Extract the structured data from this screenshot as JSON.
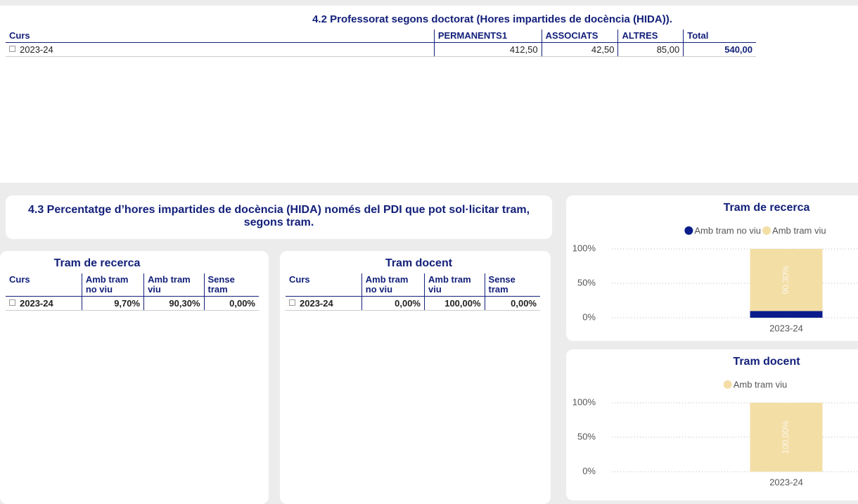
{
  "table_42": {
    "title": "4.2 Professorat segons doctorat (Hores impartides de docència (HIDA)).",
    "columns": [
      "Curs",
      "PERMANENTS1",
      "ASSOCIATS",
      "ALTRES",
      "Total"
    ],
    "rows": [
      [
        "2023-24",
        "412,50",
        "42,50",
        "85,00",
        "540,00"
      ]
    ]
  },
  "section_43": {
    "title": "4.3 Percentatge d’hores impartides de docència (HIDA) només del PDI que pot sol·licitar tram, segons tram."
  },
  "table_recerca": {
    "title": "Tram de recerca",
    "columns": [
      "Curs",
      "Amb tram no viu",
      "Amb tram viu",
      "Sense tram"
    ],
    "rows": [
      [
        "2023-24",
        "9,70%",
        "90,30%",
        "0,00%"
      ]
    ]
  },
  "table_docent": {
    "title": "Tram docent",
    "columns": [
      "Curs",
      "Amb tram no viu",
      "Amb tram viu",
      "Sense tram"
    ],
    "rows": [
      [
        "2023-24",
        "0,00%",
        "100,00%",
        "0,00%"
      ]
    ]
  },
  "chart_data": [
    {
      "type": "bar",
      "stacked": true,
      "title": "Tram de recerca",
      "categories": [
        "2023-24"
      ],
      "series": [
        {
          "name": "Amb tram no viu",
          "color": "#0b1d8a",
          "values": [
            9.7
          ]
        },
        {
          "name": "Amb tram viu",
          "color": "#f3dea6",
          "values": [
            90.3
          ],
          "value_labels": [
            "90,30%"
          ]
        }
      ],
      "ylim": [
        0,
        100
      ],
      "yticks": [
        {
          "value": 0,
          "label": "0%"
        },
        {
          "value": 50,
          "label": "50%"
        },
        {
          "value": 100,
          "label": "100%"
        }
      ],
      "grid": true
    },
    {
      "type": "bar",
      "stacked": true,
      "title": "Tram docent",
      "categories": [
        "2023-24"
      ],
      "series": [
        {
          "name": "Amb tram viu",
          "color": "#f3dea6",
          "values": [
            100
          ],
          "value_labels": [
            "100,00%"
          ]
        }
      ],
      "ylim": [
        0,
        100
      ],
      "yticks": [
        {
          "value": 0,
          "label": "0%"
        },
        {
          "value": 50,
          "label": "50%"
        },
        {
          "value": 100,
          "label": "100%"
        }
      ],
      "grid": true
    }
  ]
}
